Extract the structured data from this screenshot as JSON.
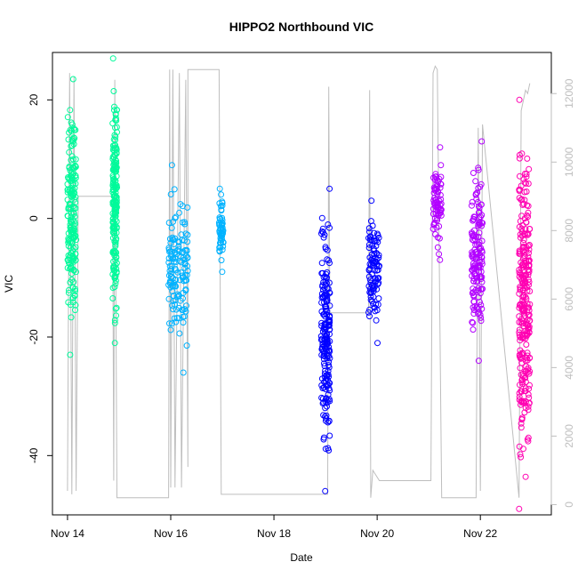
{
  "chart_data": {
    "type": "scatter",
    "title": "HIPPO2 Northbound VIC",
    "xlabel": "Date",
    "ylabel": "VIC",
    "x_axis": {
      "type": "date",
      "range": [
        "2009-11-13T17:00",
        "2009-11-23T09:00"
      ],
      "ticks": [
        {
          "value": "2009-11-14",
          "label": "Nov 14"
        },
        {
          "value": "2009-11-16",
          "label": "Nov 16"
        },
        {
          "value": "2009-11-18",
          "label": "Nov 18"
        },
        {
          "value": "2009-11-20",
          "label": "Nov 20"
        },
        {
          "value": "2009-11-22",
          "label": "Nov 22"
        }
      ]
    },
    "y_axis": {
      "range": [
        -50,
        28
      ],
      "ticks": [
        {
          "value": -40,
          "label": "-40"
        },
        {
          "value": -20,
          "label": "-20"
        },
        {
          "value": 0,
          "label": "0"
        },
        {
          "value": 20,
          "label": "20"
        }
      ]
    },
    "y2_axis": {
      "color": "#bebebe",
      "range": [
        -300,
        13200
      ],
      "ticks": [
        {
          "value": 0,
          "label": "0"
        },
        {
          "value": 2000,
          "label": "2000"
        },
        {
          "value": 4000,
          "label": "4000"
        },
        {
          "value": 6000,
          "label": "6000"
        },
        {
          "value": 8000,
          "label": "8000"
        },
        {
          "value": 10000,
          "label": "10000"
        },
        {
          "value": 12000,
          "label": "12000"
        }
      ]
    },
    "marker": "open-circle",
    "series": [
      {
        "color": "#00fa9a",
        "segments": [
          {
            "start": "2009-11-14T00:00",
            "end": "2009-11-14T04:00",
            "ymin": -23,
            "ymax": 23.5
          },
          {
            "start": "2009-11-14T21:00",
            "end": "2009-11-14T23:00",
            "ymin": -21,
            "ymax": 27
          }
        ]
      },
      {
        "color": "#00b2ff",
        "segments": [
          {
            "start": "2009-11-15T23:00",
            "end": "2009-11-16T08:00",
            "ymin": -26,
            "ymax": 9
          },
          {
            "start": "2009-11-16T22:30",
            "end": "2009-11-17T00:30",
            "ymin": -9,
            "ymax": 5
          }
        ]
      },
      {
        "color": "#0000ff",
        "segments": [
          {
            "start": "2009-11-18T22:00",
            "end": "2009-11-19T02:00",
            "ymin": -46,
            "ymax": 5
          },
          {
            "start": "2009-11-19T20:00",
            "end": "2009-11-20T01:00",
            "ymin": -21,
            "ymax": 3
          }
        ]
      },
      {
        "color": "#b200ff",
        "segments": [
          {
            "start": "2009-11-21T02:00",
            "end": "2009-11-21T06:00",
            "ymin": -7,
            "ymax": 12
          },
          {
            "start": "2009-11-21T20:00",
            "end": "2009-11-22T01:00",
            "ymin": -24,
            "ymax": 13
          }
        ]
      },
      {
        "color": "#ff00b2",
        "segments": [
          {
            "start": "2009-11-22T18:00",
            "end": "2009-11-22T23:00",
            "ymin": -49,
            "ymax": 20
          }
        ]
      }
    ],
    "overlay_line": {
      "color": "#bebebe",
      "axis": "y2",
      "points": [
        [
          "2009-11-14T00:00",
          400
        ],
        [
          "2009-11-14T01:00",
          12600
        ],
        [
          "2009-11-14T02:00",
          300
        ],
        [
          "2009-11-14T03:00",
          12500
        ],
        [
          "2009-11-14T04:00",
          400
        ],
        [
          "2009-11-14T05:00",
          9000
        ],
        [
          "2009-11-14T06:00",
          9000
        ],
        [
          "2009-11-14T08:00",
          9000
        ],
        [
          "2009-11-14T21:00",
          9000
        ],
        [
          "2009-11-14T21:30",
          700
        ],
        [
          "2009-11-14T22:00",
          12400
        ],
        [
          "2009-11-14T23:00",
          200
        ],
        [
          "2009-11-15T23:00",
          200
        ],
        [
          "2009-11-15T23:30",
          12700
        ],
        [
          "2009-11-16T00:00",
          500
        ],
        [
          "2009-11-16T01:00",
          12700
        ],
        [
          "2009-11-16T02:00",
          500
        ],
        [
          "2009-11-16T04:00",
          12600
        ],
        [
          "2009-11-16T05:00",
          500
        ],
        [
          "2009-11-16T07:00",
          12400
        ],
        [
          "2009-11-16T08:00",
          1100
        ],
        [
          "2009-11-16T08:00",
          12700
        ],
        [
          "2009-11-16T22:30",
          12700
        ],
        [
          "2009-11-16T23:30",
          300
        ],
        [
          "2009-11-19T01:00",
          300
        ],
        [
          "2009-11-19T01:30",
          12200
        ],
        [
          "2009-11-19T02:00",
          5600
        ],
        [
          "2009-11-19T20:00",
          5600
        ],
        [
          "2009-11-19T20:30",
          12100
        ],
        [
          "2009-11-19T21:00",
          200
        ],
        [
          "2009-11-19T22:00",
          1000
        ],
        [
          "2009-11-20T01:00",
          700
        ],
        [
          "2009-11-21T01:00",
          700
        ],
        [
          "2009-11-21T02:00",
          12600
        ],
        [
          "2009-11-21T03:00",
          12800
        ],
        [
          "2009-11-21T04:00",
          12700
        ],
        [
          "2009-11-21T06:00",
          200
        ],
        [
          "2009-11-21T22:00",
          200
        ],
        [
          "2009-11-21T23:00",
          11000
        ],
        [
          "2009-11-22T00:00",
          400
        ],
        [
          "2009-11-22T01:00",
          11100
        ],
        [
          "2009-11-22T18:00",
          200
        ],
        [
          "2009-11-22T19:00",
          11500
        ],
        [
          "2009-11-22T21:00",
          12100
        ],
        [
          "2009-11-22T22:00",
          12000
        ],
        [
          "2009-11-22T23:00",
          12300
        ]
      ]
    },
    "grid": false,
    "legend": "none"
  }
}
